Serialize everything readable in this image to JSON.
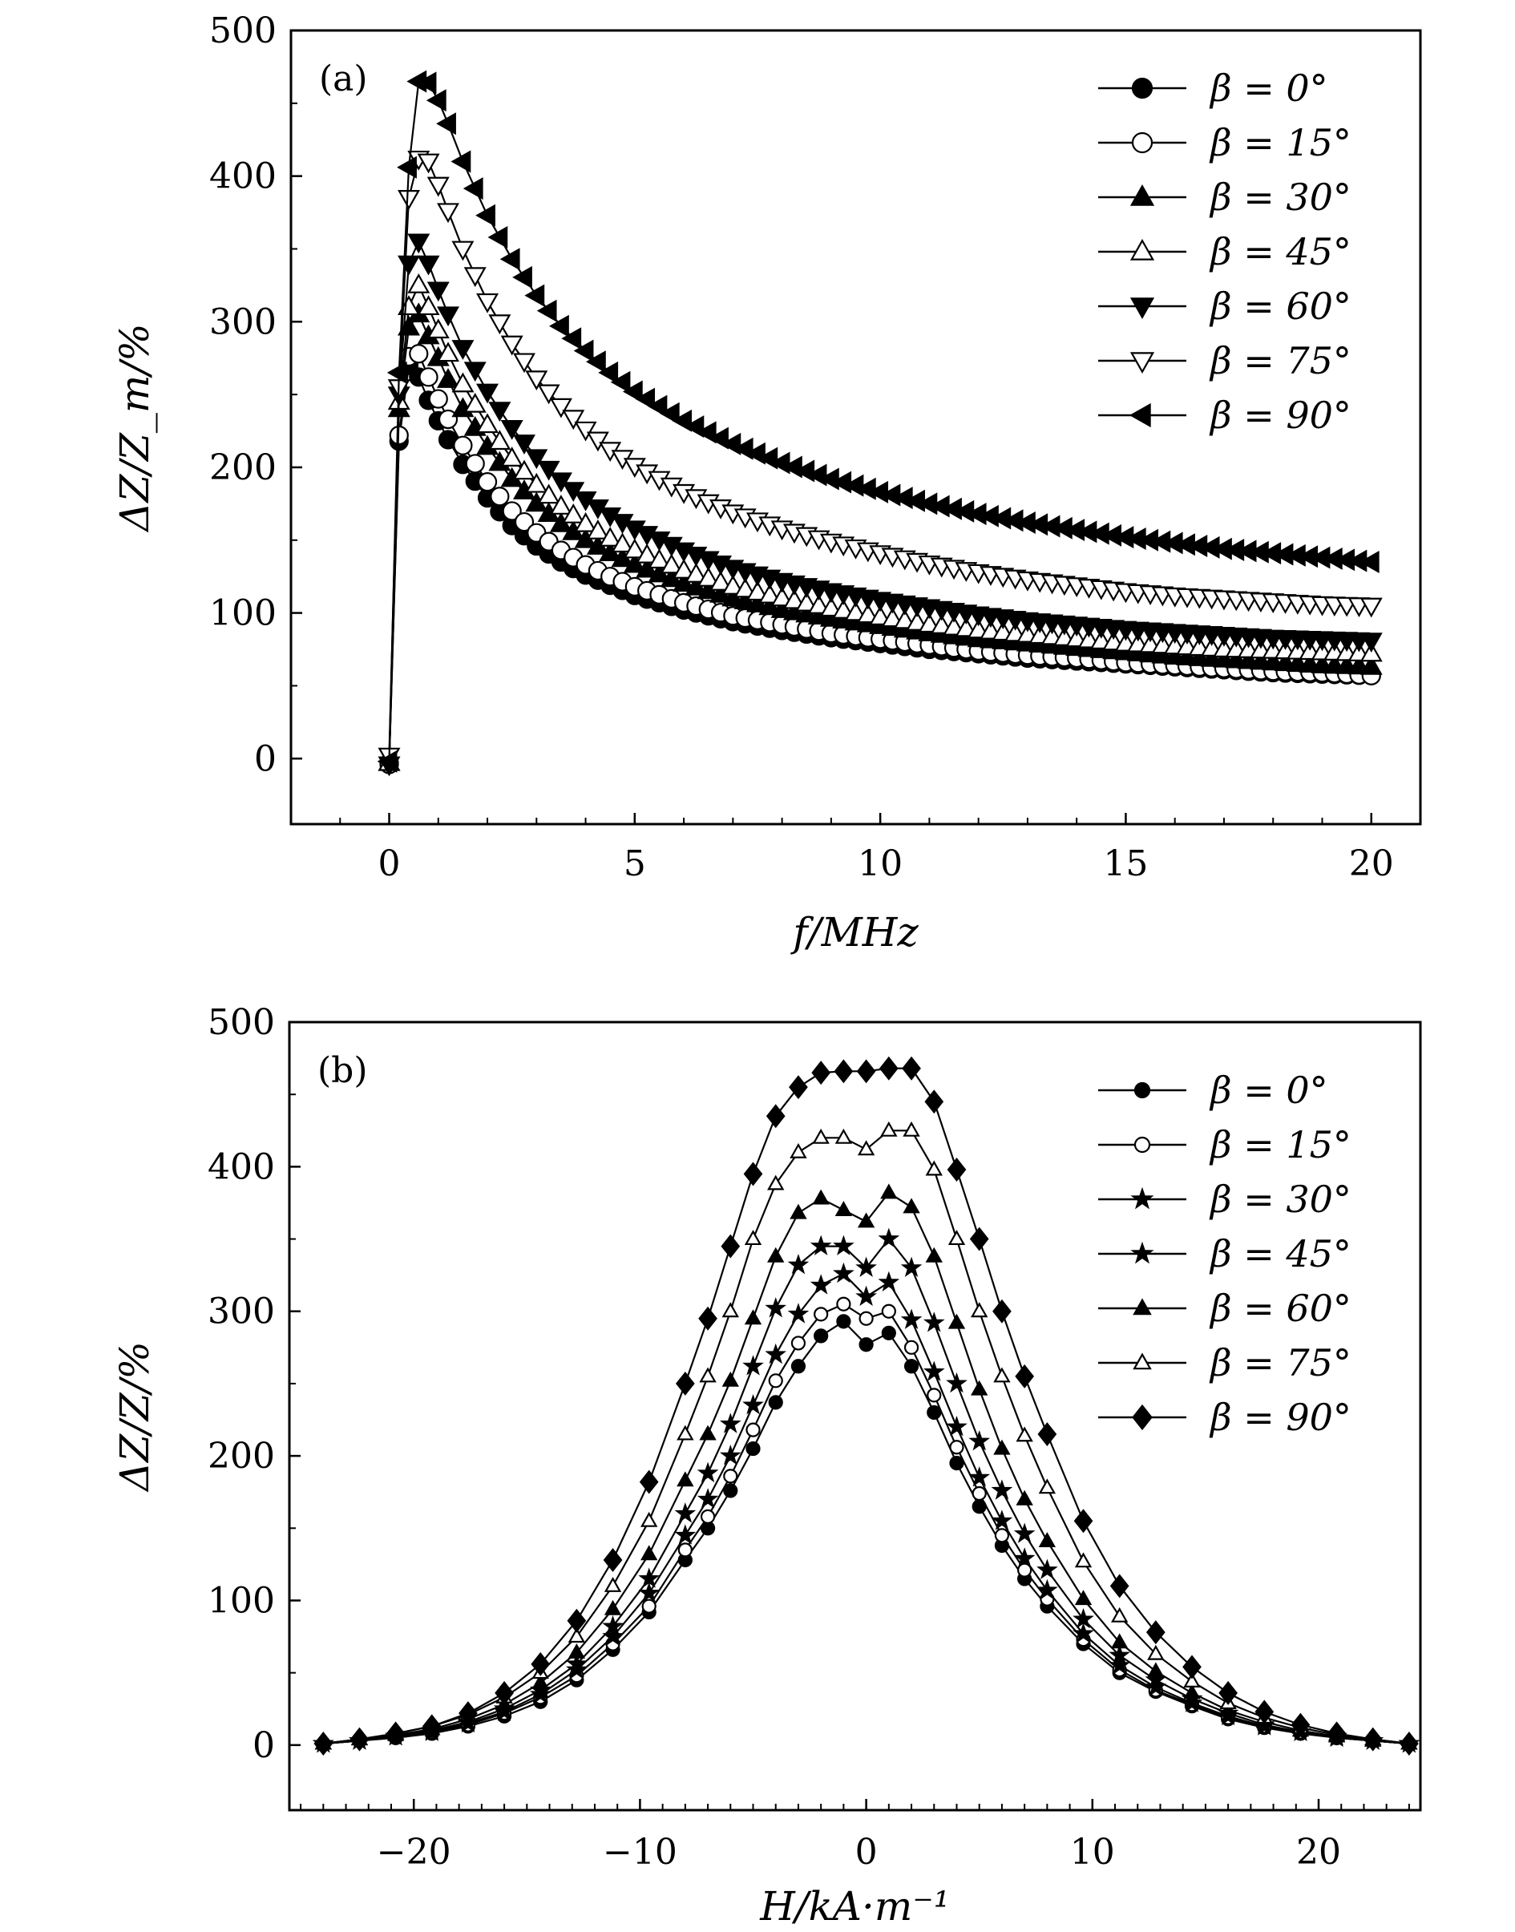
{
  "figure_title": "",
  "chart_data": [
    {
      "type": "line",
      "panel_label": "(a)",
      "title": "",
      "xlabel": "f/MHz",
      "ylabel": "ΔZ/Z_m/%",
      "xlim": [
        -2,
        21
      ],
      "ylim": [
        -45,
        500
      ],
      "xticks": [
        0,
        5,
        10,
        15,
        20
      ],
      "xtick_labels": [
        "0",
        "5",
        "10",
        "15",
        "20"
      ],
      "yticks": [
        0,
        100,
        200,
        300,
        400,
        500
      ],
      "ytick_labels": [
        "0",
        "100",
        "200",
        "300",
        "400",
        "500"
      ],
      "grid": false,
      "legend_position": "top-right",
      "x": [
        0,
        0.2,
        0.4,
        0.6,
        0.8,
        1,
        1.2,
        1.5,
        2,
        2.5,
        3,
        3.5,
        4,
        4.5,
        5,
        6,
        7,
        8,
        9,
        10,
        11,
        12,
        13,
        14,
        15,
        16,
        17,
        18,
        19,
        20
      ],
      "series": [
        {
          "name": "β = 0°",
          "marker": "circle-filled",
          "values": [
            -3,
            218,
            270,
            262,
            246,
            232,
            219,
            202,
            179,
            160,
            146,
            135,
            126,
            119,
            112,
            102,
            94,
            88,
            83,
            79,
            75,
            72,
            69,
            67,
            65,
            63,
            61,
            59,
            58,
            57
          ]
        },
        {
          "name": "β = 15°",
          "marker": "circle-open",
          "values": [
            -4,
            222,
            276,
            278,
            262,
            247,
            233,
            215,
            190,
            170,
            155,
            143,
            133,
            125,
            118,
            107,
            98,
            92,
            86,
            82,
            78,
            74,
            71,
            69,
            66,
            64,
            62,
            60,
            59,
            57
          ]
        },
        {
          "name": "β = 30°",
          "marker": "triangle-up-filled",
          "values": [
            -3,
            240,
            296,
            305,
            290,
            275,
            260,
            240,
            214,
            192,
            175,
            161,
            150,
            141,
            133,
            120,
            110,
            102,
            96,
            91,
            86,
            82,
            79,
            76,
            73,
            70,
            68,
            66,
            64,
            63
          ]
        },
        {
          "name": "β = 45°",
          "marker": "triangle-up-open",
          "values": [
            -3,
            245,
            310,
            325,
            310,
            294,
            278,
            257,
            229,
            206,
            188,
            173,
            161,
            151,
            143,
            129,
            118,
            110,
            103,
            97,
            92,
            88,
            85,
            82,
            79,
            77,
            75,
            74,
            73,
            72
          ]
        },
        {
          "name": "β = 60°",
          "marker": "triangle-down-filled",
          "values": [
            -4,
            250,
            340,
            355,
            340,
            322,
            305,
            282,
            252,
            227,
            207,
            191,
            178,
            167,
            158,
            143,
            131,
            122,
            115,
            109,
            104,
            99,
            95,
            92,
            89,
            87,
            85,
            83,
            82,
            81
          ]
        },
        {
          "name": "β = 75°",
          "marker": "triangle-down-open",
          "values": [
            2,
            255,
            385,
            412,
            410,
            394,
            376,
            350,
            314,
            285,
            261,
            242,
            226,
            212,
            201,
            183,
            169,
            158,
            149,
            141,
            134,
            128,
            123,
            119,
            115,
            112,
            110,
            108,
            106,
            105
          ]
        },
        {
          "name": "β = 90°",
          "marker": "triangle-left-filled",
          "values": [
            -2,
            265,
            406,
            465,
            464,
            452,
            436,
            410,
            373,
            343,
            318,
            297,
            280,
            265,
            252,
            232,
            216,
            203,
            192,
            183,
            175,
            168,
            162,
            157,
            152,
            148,
            144,
            141,
            138,
            135
          ]
        }
      ]
    },
    {
      "type": "line",
      "panel_label": "(b)",
      "title": "",
      "xlabel": "H/kA·m⁻¹",
      "ylabel": "ΔZ/Z/%",
      "xlim": [
        -25.5,
        24.5
      ],
      "ylim": [
        -45,
        500
      ],
      "xticks": [
        -20,
        -10,
        0,
        10,
        20
      ],
      "xtick_labels": [
        "−20",
        "−10",
        "0",
        "10",
        "20"
      ],
      "yticks": [
        0,
        100,
        200,
        300,
        400,
        500
      ],
      "ytick_labels": [
        "0",
        "100",
        "200",
        "300",
        "400",
        "500"
      ],
      "grid": false,
      "legend_position": "top-right",
      "x": [
        -24,
        -22.4,
        -20.8,
        -19.2,
        -17.6,
        -16,
        -14.4,
        -12.8,
        -11.2,
        -9.6,
        -8,
        -7,
        -6,
        -5,
        -4,
        -3,
        -2,
        -1,
        0,
        1,
        2,
        3,
        4,
        5,
        6,
        7,
        8,
        9.6,
        11.2,
        12.8,
        14.4,
        16,
        17.6,
        19.2,
        20.8,
        22.4,
        24
      ],
      "series": [
        {
          "name": "β = 0°",
          "marker": "circle-filled-small",
          "values": [
            1,
            3,
            5,
            8,
            13,
            20,
            30,
            45,
            66,
            92,
            128,
            150,
            176,
            205,
            237,
            262,
            283,
            293,
            277,
            285,
            262,
            230,
            195,
            165,
            138,
            115,
            96,
            70,
            50,
            37,
            27,
            18,
            12,
            8,
            5,
            3,
            1
          ]
        },
        {
          "name": "β = 15°",
          "marker": "circle-open-small",
          "values": [
            1,
            3,
            6,
            9,
            14,
            22,
            33,
            48,
            70,
            96,
            135,
            158,
            186,
            218,
            252,
            278,
            298,
            305,
            295,
            300,
            275,
            242,
            206,
            174,
            145,
            121,
            101,
            73,
            52,
            38,
            28,
            19,
            13,
            9,
            5,
            3,
            1
          ]
        },
        {
          "name": "β = 30°",
          "marker": "star-filled",
          "values": [
            1,
            3,
            6,
            9,
            15,
            23,
            35,
            52,
            75,
            105,
            145,
            170,
            200,
            235,
            270,
            298,
            318,
            326,
            310,
            320,
            294,
            258,
            220,
            185,
            155,
            129,
            107,
            77,
            55,
            40,
            29,
            20,
            13,
            9,
            5,
            3,
            1
          ]
        },
        {
          "name": "β = 45°",
          "marker": "star-filled",
          "values": [
            1,
            3,
            6,
            10,
            16,
            25,
            38,
            56,
            82,
            115,
            160,
            188,
            222,
            262,
            302,
            332,
            345,
            345,
            330,
            350,
            330,
            292,
            250,
            210,
            176,
            146,
            121,
            87,
            62,
            45,
            32,
            22,
            14,
            9,
            6,
            3,
            1
          ]
        },
        {
          "name": "β = 60°",
          "marker": "triangle-up-filled-small",
          "values": [
            1,
            4,
            7,
            11,
            18,
            28,
            43,
            64,
            94,
            132,
            183,
            215,
            252,
            295,
            338,
            368,
            378,
            370,
            362,
            382,
            372,
            338,
            292,
            246,
            205,
            170,
            141,
            101,
            71,
            51,
            36,
            24,
            16,
            10,
            6,
            3,
            1
          ]
        },
        {
          "name": "β = 75°",
          "marker": "triangle-up-open-small",
          "values": [
            1,
            4,
            8,
            13,
            21,
            33,
            50,
            75,
            110,
            155,
            215,
            255,
            300,
            350,
            388,
            410,
            420,
            420,
            412,
            425,
            425,
            398,
            350,
            300,
            255,
            214,
            178,
            127,
            89,
            63,
            44,
            29,
            19,
            12,
            7,
            4,
            1
          ]
        },
        {
          "name": "β = 90°",
          "marker": "diamond-filled",
          "values": [
            1,
            4,
            8,
            13,
            22,
            36,
            56,
            86,
            128,
            182,
            250,
            295,
            345,
            395,
            435,
            455,
            465,
            466,
            466,
            468,
            468,
            445,
            398,
            350,
            300,
            255,
            215,
            155,
            110,
            78,
            54,
            36,
            23,
            14,
            8,
            4,
            1
          ]
        }
      ]
    }
  ]
}
